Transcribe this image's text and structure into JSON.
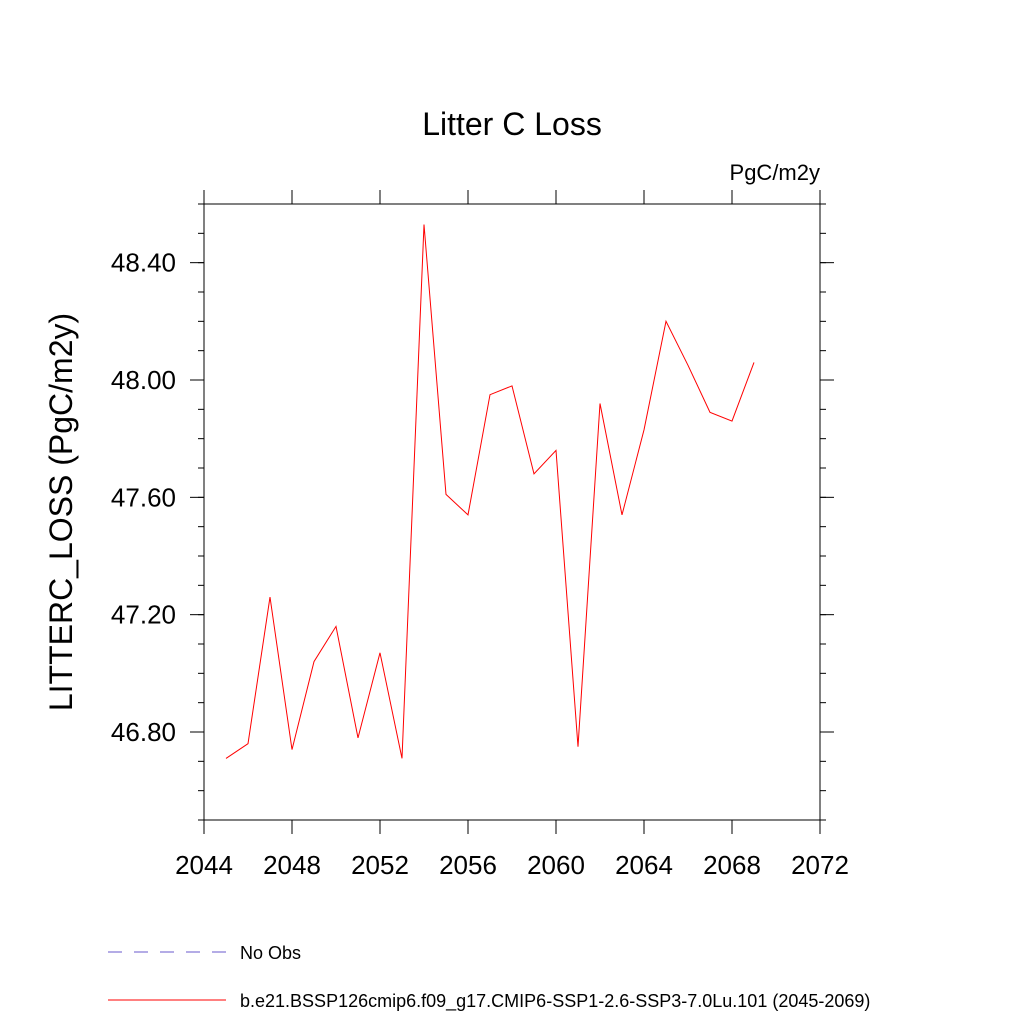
{
  "chart_data": {
    "type": "line",
    "title": "Litter C Loss",
    "units_label": "PgC/m2y",
    "xlabel": "",
    "ylabel": "LITTERC_LOSS  (PgC/m2y)",
    "xlim": [
      2044,
      2072
    ],
    "ylim": [
      46.5,
      48.6
    ],
    "xticks": [
      2044,
      2048,
      2052,
      2056,
      2060,
      2064,
      2068,
      2072
    ],
    "xtick_labels": [
      "2044",
      "2048",
      "2052",
      "2056",
      "2060",
      "2064",
      "2068",
      "2072"
    ],
    "yticks": [
      46.8,
      47.2,
      47.6,
      48.0,
      48.4
    ],
    "ytick_labels": [
      "46.80",
      "47.20",
      "47.60",
      "48.00",
      "48.40"
    ],
    "grid": false,
    "legend_position": "bottom",
    "series": [
      {
        "name": "No Obs",
        "color": "#6a5acd",
        "style": "dashed",
        "x": [],
        "values": []
      },
      {
        "name": "b.e21.BSSP126cmip6.f09_g17.CMIP6-SSP1-2.6-SSP3-7.0Lu.101 (2045-2069)",
        "color": "#ff0000",
        "style": "solid",
        "x": [
          2045,
          2046,
          2047,
          2048,
          2049,
          2050,
          2051,
          2052,
          2053,
          2054,
          2055,
          2056,
          2057,
          2058,
          2059,
          2060,
          2061,
          2062,
          2063,
          2064,
          2065,
          2066,
          2067,
          2068,
          2069
        ],
        "values": [
          46.71,
          46.76,
          47.26,
          46.74,
          47.04,
          47.16,
          46.78,
          47.07,
          46.71,
          48.53,
          47.61,
          47.54,
          47.95,
          47.98,
          47.68,
          47.76,
          46.75,
          47.92,
          47.54,
          47.83,
          48.2,
          48.05,
          47.89,
          47.86,
          48.06
        ]
      }
    ]
  }
}
